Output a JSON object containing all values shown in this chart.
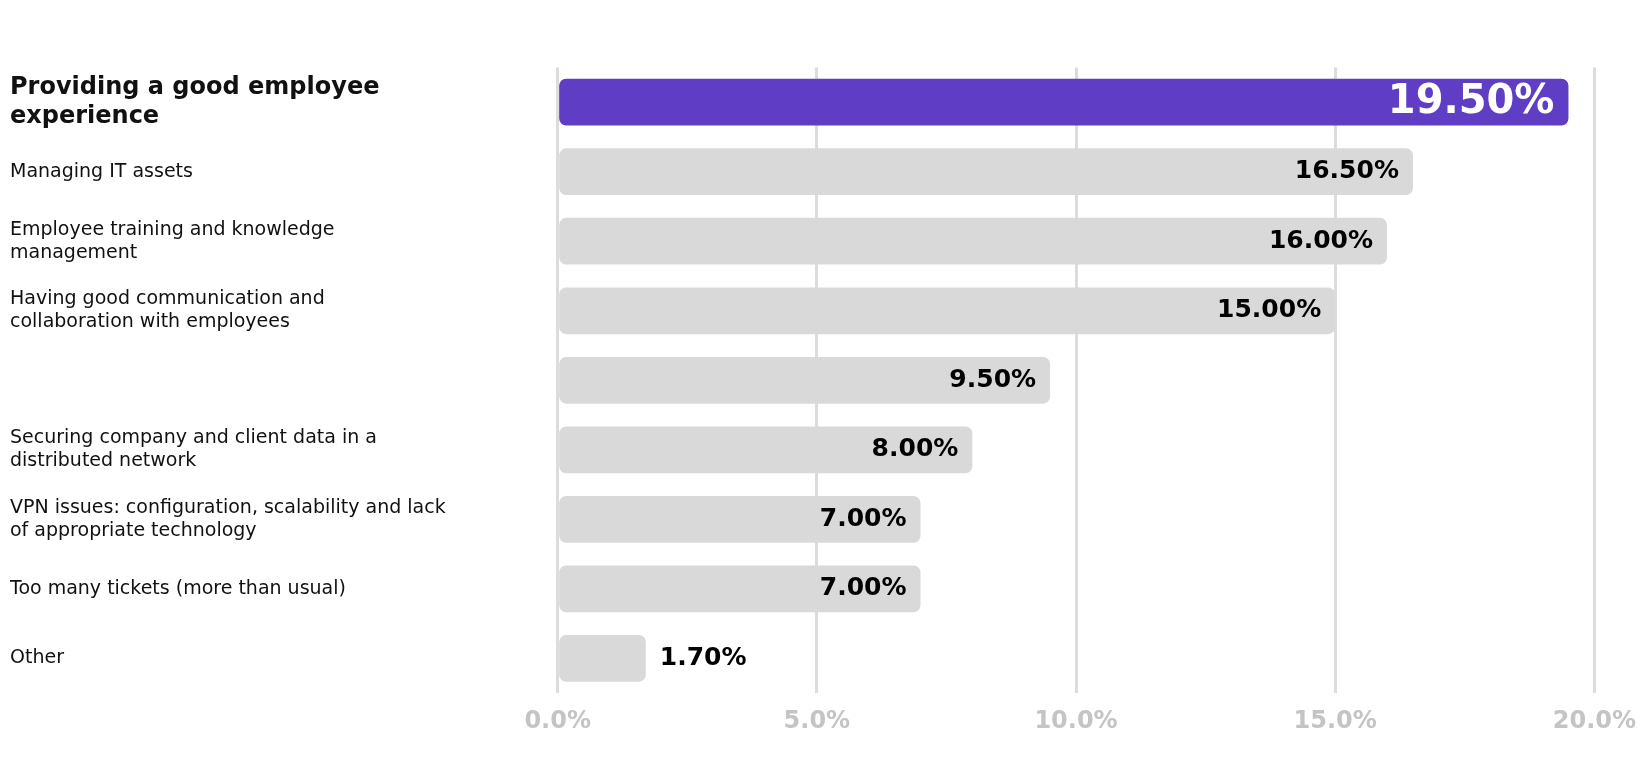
{
  "chart_data": {
    "type": "bar",
    "orientation": "horizontal",
    "categories": [
      "Providing a good employee experience",
      "Managing IT assets",
      "Employee training and knowledge management",
      "Having good communication and collaboration with employees",
      null,
      "Securing company and client data in a distributed network",
      "VPN issues: configuration, scalability and lack of appropriate technology",
      "Too many tickets (more than usual)",
      "Other"
    ],
    "values": [
      19.5,
      16.5,
      16.0,
      15.0,
      9.5,
      8.0,
      7.0,
      7.0,
      1.7
    ],
    "colors": [
      "#5f3dc4",
      "#d9d9d9",
      "#d9d9d9",
      "#d9d9d9",
      "#d9d9d9",
      "#d9d9d9",
      "#d9d9d9",
      "#d9d9d9",
      "#d9d9d9"
    ],
    "value_labels": [
      "19.50%",
      "16.50%",
      "16.00%",
      "15.00%",
      "9.50%",
      "8.00%",
      "7.00%",
      "7.00%",
      "1.70%"
    ],
    "xlim": [
      0,
      20
    ],
    "xticks": [
      {
        "value": 0,
        "label": "0.0%"
      },
      {
        "value": 5,
        "label": "5.0%"
      },
      {
        "value": 10,
        "label": "10.0%"
      },
      {
        "value": 15,
        "label": "15.0%"
      },
      {
        "value": 20,
        "label": "20.0%"
      }
    ],
    "grid": "x"
  }
}
